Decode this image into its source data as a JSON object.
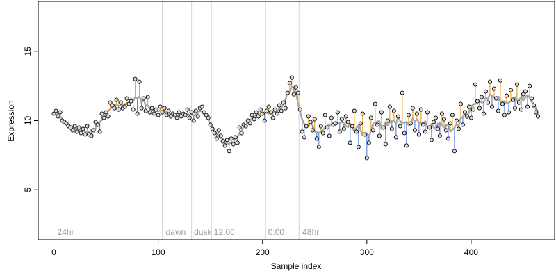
{
  "chart_data": {
    "type": "scatter",
    "title": "",
    "xlabel": "Sample index",
    "ylabel": "Expression",
    "xlim": [
      -15,
      480
    ],
    "ylim": [
      1.4,
      18.6
    ],
    "x_ticks": [
      0,
      100,
      200,
      300,
      400
    ],
    "y_ticks": [
      5,
      10,
      15
    ],
    "grid": false,
    "legend": "none",
    "phase_boundaries": [
      104,
      132,
      151,
      203,
      235
    ],
    "phase_labels": [
      {
        "x": 2,
        "label": "24hr"
      },
      {
        "x": 106,
        "label": "dawn"
      },
      {
        "x": 133,
        "label": "dusk"
      },
      {
        "x": 152,
        "label": "12:00"
      },
      {
        "x": 204,
        "label": "0:00"
      },
      {
        "x": 237,
        "label": "48hr"
      }
    ],
    "colors": {
      "fitted_line": "#a9a9a9",
      "residual_positive": "#f5a623",
      "residual_negative": "#5b8fd6",
      "point_fill": "#d9d9d9",
      "point_edge": "#000000",
      "phase_line": "#d3d3d3",
      "phase_text": "#9a9a9a"
    },
    "series": [
      {
        "role": "observed-and-fitted",
        "points": [
          [
            0,
            10.5
          ],
          [
            2,
            10.7
          ],
          [
            4,
            10.3
          ],
          [
            6,
            10.6
          ],
          [
            8,
            10.0
          ],
          [
            10,
            9.9
          ],
          [
            12,
            9.8
          ],
          [
            14,
            9.6
          ],
          [
            16,
            9.5
          ],
          [
            18,
            9.3
          ],
          [
            20,
            9.6
          ],
          [
            22,
            9.2
          ],
          [
            24,
            9.5
          ],
          [
            26,
            9.1
          ],
          [
            28,
            9.4
          ],
          [
            30,
            9.0
          ],
          [
            32,
            9.6
          ],
          [
            34,
            9.0
          ],
          [
            36,
            8.9
          ],
          [
            38,
            9.3
          ],
          [
            40,
            9.9
          ],
          [
            42,
            9.7
          ],
          [
            44,
            9.2
          ],
          [
            46,
            10.5
          ],
          [
            48,
            10.2
          ],
          [
            50,
            10.6
          ],
          [
            52,
            10.3
          ],
          [
            54,
            11.3
          ],
          [
            56,
            11.1
          ],
          [
            58,
            10.9
          ],
          [
            60,
            11.5
          ],
          [
            62,
            10.8
          ],
          [
            64,
            11.3
          ],
          [
            66,
            10.9
          ],
          [
            68,
            11.0
          ],
          [
            70,
            11.6
          ],
          [
            72,
            11.2
          ],
          [
            74,
            11.4
          ],
          [
            76,
            10.8
          ],
          [
            78,
            13.0
          ],
          [
            80,
            10.5
          ],
          [
            82,
            12.8
          ],
          [
            84,
            10.9
          ],
          [
            86,
            11.6
          ],
          [
            88,
            10.7
          ],
          [
            90,
            11.7
          ],
          [
            92,
            10.6
          ],
          [
            94,
            10.9
          ],
          [
            96,
            10.5
          ],
          [
            98,
            10.8
          ],
          [
            100,
            10.4
          ],
          [
            102,
            11.0
          ],
          [
            104,
            10.6
          ],
          [
            106,
            10.9
          ],
          [
            108,
            10.4
          ],
          [
            110,
            10.7
          ],
          [
            112,
            10.3
          ],
          [
            114,
            10.5
          ],
          [
            116,
            10.4
          ],
          [
            118,
            10.2
          ],
          [
            120,
            10.6
          ],
          [
            122,
            10.3
          ],
          [
            124,
            10.5
          ],
          [
            126,
            10.4
          ],
          [
            128,
            10.8
          ],
          [
            130,
            10.2
          ],
          [
            132,
            10.6
          ],
          [
            134,
            10.0
          ],
          [
            136,
            10.7
          ],
          [
            138,
            10.3
          ],
          [
            140,
            10.9
          ],
          [
            142,
            11.0
          ],
          [
            144,
            10.6
          ],
          [
            146,
            10.4
          ],
          [
            148,
            10.2
          ],
          [
            150,
            9.7
          ],
          [
            152,
            9.4
          ],
          [
            154,
            9.1
          ],
          [
            156,
            8.7
          ],
          [
            158,
            9.3
          ],
          [
            160,
            8.9
          ],
          [
            162,
            8.5
          ],
          [
            164,
            8.2
          ],
          [
            166,
            8.6
          ],
          [
            168,
            7.8
          ],
          [
            170,
            8.7
          ],
          [
            172,
            8.3
          ],
          [
            174,
            8.8
          ],
          [
            176,
            8.4
          ],
          [
            178,
            9.5
          ],
          [
            180,
            9.1
          ],
          [
            182,
            9.7
          ],
          [
            184,
            9.6
          ],
          [
            186,
            10.0
          ],
          [
            188,
            9.8
          ],
          [
            190,
            10.4
          ],
          [
            192,
            10.1
          ],
          [
            194,
            10.6
          ],
          [
            196,
            10.3
          ],
          [
            198,
            10.8
          ],
          [
            200,
            10.5
          ],
          [
            202,
            10.0
          ],
          [
            204,
            10.7
          ],
          [
            206,
            11.0
          ],
          [
            208,
            10.6
          ],
          [
            210,
            10.2
          ],
          [
            212,
            10.8
          ],
          [
            214,
            10.5
          ],
          [
            216,
            11.1
          ],
          [
            218,
            10.7
          ],
          [
            220,
            11.3
          ],
          [
            222,
            10.9
          ],
          [
            224,
            12.0
          ],
          [
            226,
            12.7
          ],
          [
            228,
            13.1
          ],
          [
            230,
            11.9
          ],
          [
            232,
            12.4
          ],
          [
            234,
            12.0
          ],
          [
            236,
            10.8
          ],
          [
            238,
            9.2
          ],
          [
            240,
            8.8
          ],
          [
            242,
            9.6
          ],
          [
            244,
            10.3
          ],
          [
            246,
            9.9
          ],
          [
            248,
            9.3
          ],
          [
            250,
            10.1
          ],
          [
            252,
            8.7
          ],
          [
            254,
            8.1
          ],
          [
            256,
            9.6
          ],
          [
            258,
            9.1
          ],
          [
            260,
            10.4
          ],
          [
            262,
            9.5
          ],
          [
            264,
            8.9
          ],
          [
            266,
            10.2
          ],
          [
            268,
            9.7
          ],
          [
            270,
            9.8
          ],
          [
            272,
            10.6
          ],
          [
            274,
            9.2
          ],
          [
            276,
            10.1
          ],
          [
            278,
            9.4
          ],
          [
            280,
            10.3
          ],
          [
            282,
            9.9
          ],
          [
            284,
            8.4
          ],
          [
            286,
            9.6
          ],
          [
            288,
            10.7
          ],
          [
            290,
            9.2
          ],
          [
            292,
            8.1
          ],
          [
            294,
            9.8
          ],
          [
            296,
            10.5
          ],
          [
            298,
            9.0
          ],
          [
            300,
            7.3
          ],
          [
            302,
            8.4
          ],
          [
            304,
            10.2
          ],
          [
            306,
            9.3
          ],
          [
            308,
            11.2
          ],
          [
            310,
            9.7
          ],
          [
            312,
            8.9
          ],
          [
            314,
            10.6
          ],
          [
            316,
            9.5
          ],
          [
            318,
            8.3
          ],
          [
            320,
            10.0
          ],
          [
            322,
            11.0
          ],
          [
            324,
            9.4
          ],
          [
            326,
            10.7
          ],
          [
            328,
            8.8
          ],
          [
            330,
            10.3
          ],
          [
            332,
            9.6
          ],
          [
            334,
            12.0
          ],
          [
            336,
            9.1
          ],
          [
            338,
            8.2
          ],
          [
            340,
            10.4
          ],
          [
            342,
            9.8
          ],
          [
            344,
            10.9
          ],
          [
            346,
            9.3
          ],
          [
            348,
            10.5
          ],
          [
            350,
            9.0
          ],
          [
            352,
            10.8
          ],
          [
            354,
            9.7
          ],
          [
            356,
            9.2
          ],
          [
            358,
            10.6
          ],
          [
            360,
            9.5
          ],
          [
            362,
            8.6
          ],
          [
            364,
            9.9
          ],
          [
            366,
            10.2
          ],
          [
            368,
            9.4
          ],
          [
            370,
            8.9
          ],
          [
            372,
            10.5
          ],
          [
            374,
            10.1
          ],
          [
            376,
            9.3
          ],
          [
            378,
            8.7
          ],
          [
            380,
            9.8
          ],
          [
            382,
            10.4
          ],
          [
            384,
            7.8
          ],
          [
            386,
            10.0
          ],
          [
            388,
            9.4
          ],
          [
            390,
            11.2
          ],
          [
            392,
            9.7
          ],
          [
            394,
            10.6
          ],
          [
            396,
            10.3
          ],
          [
            398,
            11.0
          ],
          [
            400,
            10.2
          ],
          [
            402,
            10.8
          ],
          [
            404,
            12.6
          ],
          [
            406,
            11.4
          ],
          [
            408,
            10.9
          ],
          [
            410,
            11.7
          ],
          [
            412,
            10.5
          ],
          [
            414,
            12.1
          ],
          [
            416,
            11.3
          ],
          [
            418,
            12.8
          ],
          [
            420,
            11.0
          ],
          [
            422,
            12.3
          ],
          [
            424,
            11.6
          ],
          [
            426,
            10.7
          ],
          [
            428,
            12.9
          ],
          [
            430,
            11.2
          ],
          [
            432,
            10.4
          ],
          [
            434,
            11.8
          ],
          [
            436,
            10.6
          ],
          [
            438,
            12.2
          ],
          [
            440,
            11.5
          ],
          [
            442,
            10.9
          ],
          [
            444,
            12.6
          ],
          [
            446,
            11.3
          ],
          [
            448,
            10.8
          ],
          [
            450,
            11.9
          ],
          [
            452,
            12.1
          ],
          [
            454,
            11.0
          ],
          [
            456,
            12.5
          ],
          [
            458,
            11.6
          ],
          [
            460,
            11.1
          ],
          [
            462,
            10.6
          ],
          [
            464,
            10.3
          ]
        ]
      }
    ]
  }
}
